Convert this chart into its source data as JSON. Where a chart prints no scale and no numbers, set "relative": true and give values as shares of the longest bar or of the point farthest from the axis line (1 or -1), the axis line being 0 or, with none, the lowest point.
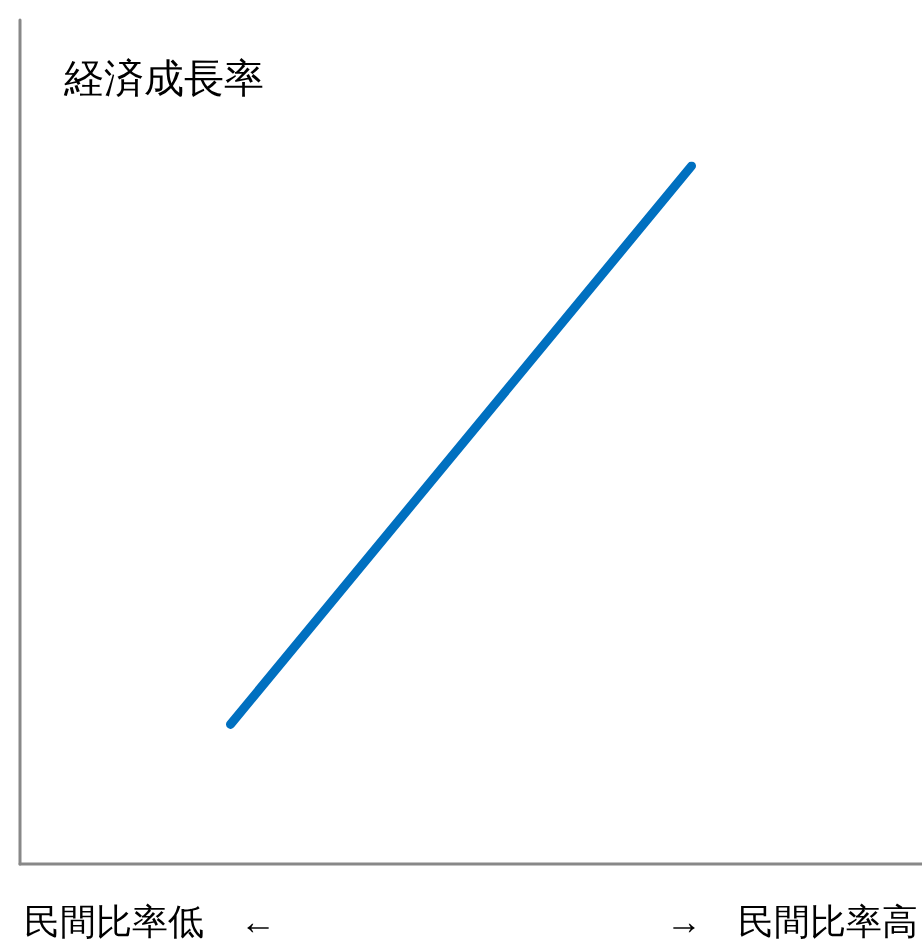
{
  "chart_data": {
    "type": "line",
    "relative": true,
    "ylabel": "経済成長率",
    "annotations": [
      "民間比率低　←",
      "→　民間比率高"
    ],
    "categories": [
      null,
      null
    ],
    "line_style": "solid",
    "series": [
      {
        "color": "#0070c0",
        "values": [
          0.2,
          1
        ]
      }
    ]
  }
}
